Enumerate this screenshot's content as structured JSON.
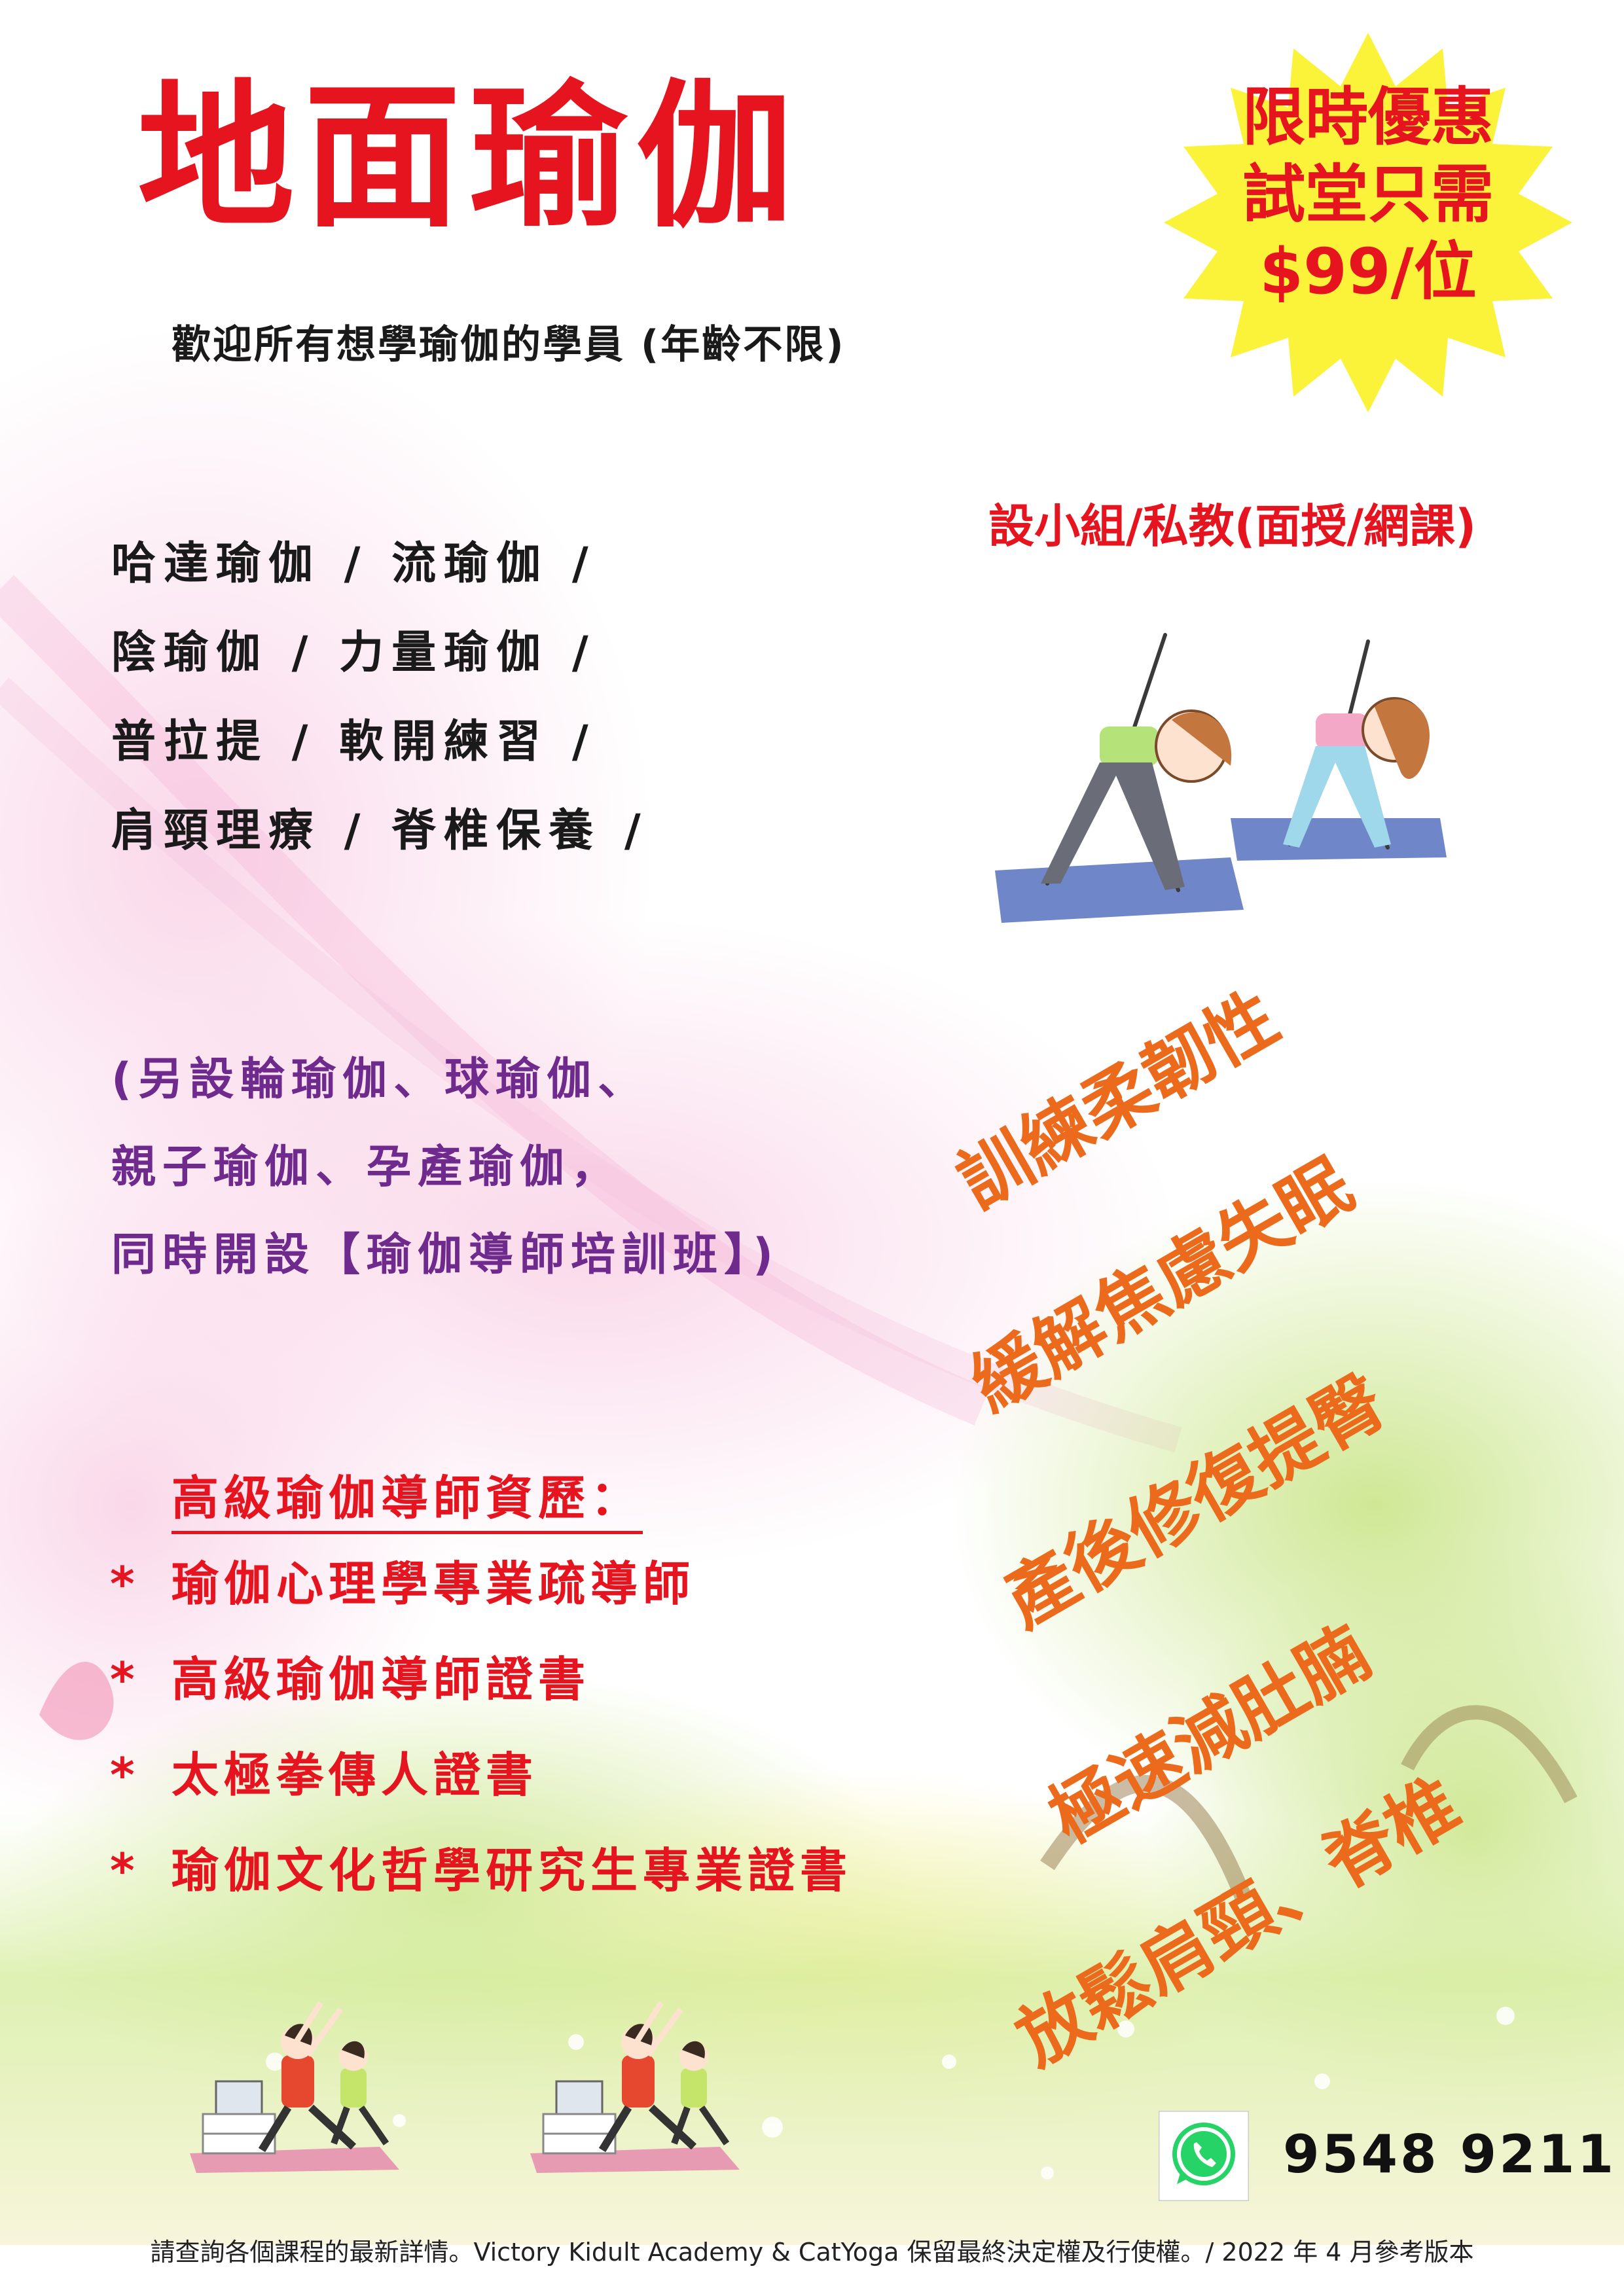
{
  "header": {
    "title": "地面瑜伽",
    "subtitle": "歡迎所有想學瑜伽的學員 (年齡不限)"
  },
  "promo": {
    "line1": "限時優惠",
    "line2": "試堂只需",
    "line3": "$99/位"
  },
  "small_group": "設小組/私教(面授/網課)",
  "courses": [
    "哈達瑜伽 / 流瑜伽 /",
    "陰瑜伽 / 力量瑜伽 /",
    "普拉提 / 軟開練習 /",
    "肩頸理療 / 脊椎保養 /"
  ],
  "extra_courses": [
    "(另設輪瑜伽、球瑜伽、",
    "親子瑜伽、孕產瑜伽，",
    "同時開設【瑜伽導師培訓班】)"
  ],
  "benefits": [
    "訓練柔韌性",
    "緩解焦慮失眠",
    "產後修復提臀",
    "極速減肚腩",
    "放鬆肩頸、脊椎"
  ],
  "qualifications": {
    "heading": "高級瑜伽導師資歷：",
    "bullet": "*",
    "items": [
      "瑜伽心理學專業疏導師",
      "高級瑜伽導師證書",
      "太極拳傳人證書",
      "瑜伽文化哲學研究生專業證書"
    ]
  },
  "contact": {
    "icon": "whatsapp-icon",
    "phone": "9548 9211"
  },
  "footer": "請查詢各個課程的最新詳情。Victory Kidult Academy & CatYoga 保留最終決定權及行使權。/ 2022 年 4 月參考版本",
  "colors": {
    "title_red": "#e5141f",
    "burst_yellow": "#fbf33a",
    "benefit_orange": "#ec6a1c",
    "extra_purple": "#6f2a8e",
    "whatsapp_green": "#25d366"
  }
}
